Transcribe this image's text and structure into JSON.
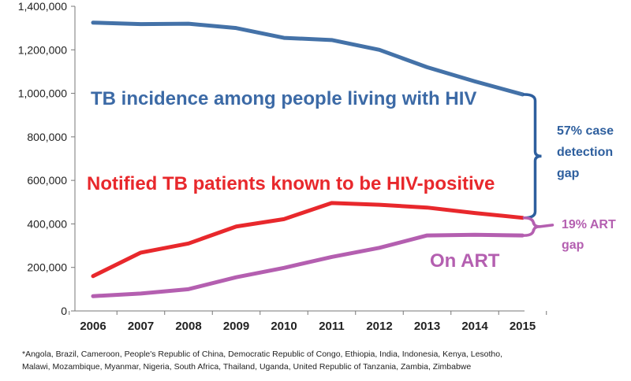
{
  "chart_data": {
    "type": "line",
    "title": "",
    "xlabel": "",
    "ylabel": "",
    "x": [
      2006,
      2007,
      2008,
      2009,
      2010,
      2011,
      2012,
      2013,
      2014,
      2015
    ],
    "x_tick_labels": [
      "2006",
      "2007",
      "2008",
      "2009",
      "2010",
      "2011",
      "2012",
      "2013",
      "2014",
      "2015"
    ],
    "ylim": [
      0,
      1400000
    ],
    "y_ticks": [
      0,
      200000,
      400000,
      600000,
      800000,
      1000000,
      1200000,
      1400000
    ],
    "y_tick_labels": [
      "0",
      "200,000",
      "400,000",
      "600,000",
      "800,000",
      "1,000,000",
      "1,200,000",
      "1,400,000"
    ],
    "grid": false,
    "series": [
      {
        "name": "TB incidence among people living with HIV",
        "color": "#4472a8",
        "values": [
          1325000,
          1318000,
          1320000,
          1300000,
          1255000,
          1245000,
          1200000,
          1120000,
          1055000,
          995000
        ]
      },
      {
        "name": "Notified TB patients known to be HIV-positive",
        "color": "#e8282c",
        "values": [
          160000,
          268000,
          310000,
          388000,
          422000,
          496000,
          488000,
          475000,
          450000,
          428000
        ]
      },
      {
        "name": "On ART",
        "color": "#b45fb0",
        "values": [
          68000,
          80000,
          100000,
          155000,
          198000,
          248000,
          290000,
          347000,
          350000,
          347000
        ]
      }
    ],
    "annotations": {
      "case_gap": {
        "line1": "57% case",
        "line2": "detection",
        "line3": "gap",
        "color": "#2e5f9e"
      },
      "art_gap": {
        "line1": "19% ART",
        "line2": "gap",
        "color": "#b45fb0"
      }
    }
  },
  "footnote": {
    "line1": "*Angola, Brazil, Cameroon, People's Republic of China, Democratic Republic of Congo, Ethiopia, India, Indonesia, Kenya, Lesotho,",
    "line2": "Malawi, Mozambique, Myanmar, Nigeria, South Africa, Thailand, Uganda, United Republic of Tanzania, Zambia, Zimbabwe"
  }
}
